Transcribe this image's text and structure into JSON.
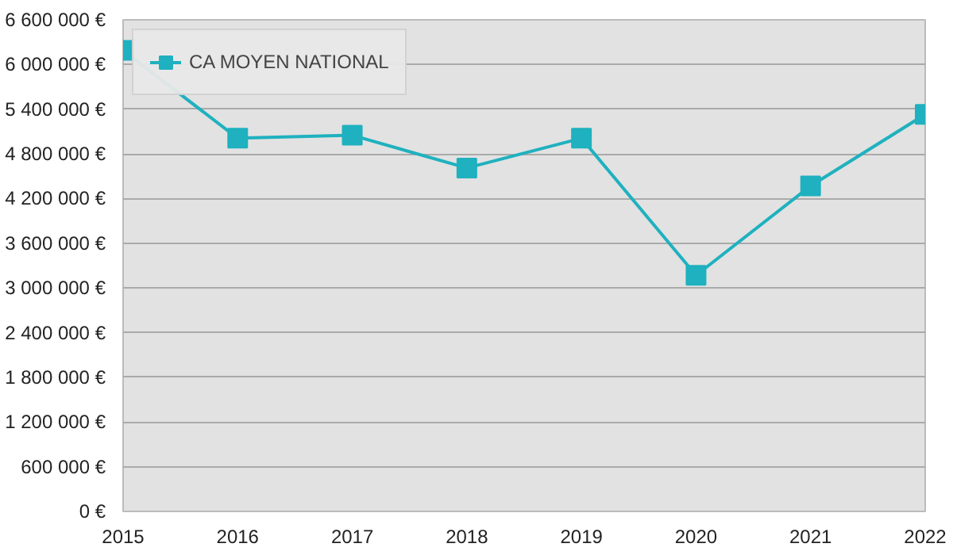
{
  "chart_data": {
    "type": "line",
    "categories": [
      "2015",
      "2016",
      "2017",
      "2018",
      "2019",
      "2020",
      "2021",
      "2022"
    ],
    "series": [
      {
        "name": "CA MOYEN NATIONAL",
        "color": "#1fb1bf",
        "values": [
          6190000,
          5010000,
          5050000,
          4610000,
          5010000,
          3170000,
          4370000,
          5330000
        ]
      }
    ],
    "ylim": [
      0,
      6600000
    ],
    "yticks": [
      {
        "value": 0,
        "label": "0 €"
      },
      {
        "value": 600000,
        "label": "600 000 €"
      },
      {
        "value": 1200000,
        "label": "1 200 000 €"
      },
      {
        "value": 1800000,
        "label": "1 800 000 €"
      },
      {
        "value": 2400000,
        "label": "2 400 000 €"
      },
      {
        "value": 3000000,
        "label": "3 000 000 €"
      },
      {
        "value": 3600000,
        "label": "3 600 000 €"
      },
      {
        "value": 4200000,
        "label": "4 200 000 €"
      },
      {
        "value": 4800000,
        "label": "4 800 000 €"
      },
      {
        "value": 5400000,
        "label": "5 400 000 €"
      },
      {
        "value": 6000000,
        "label": "6 000 000 €"
      },
      {
        "value": 6600000,
        "label": "6 600 000 €"
      }
    ],
    "grid": "y",
    "legend": "top left",
    "marker": "square",
    "line_style": "solid"
  }
}
